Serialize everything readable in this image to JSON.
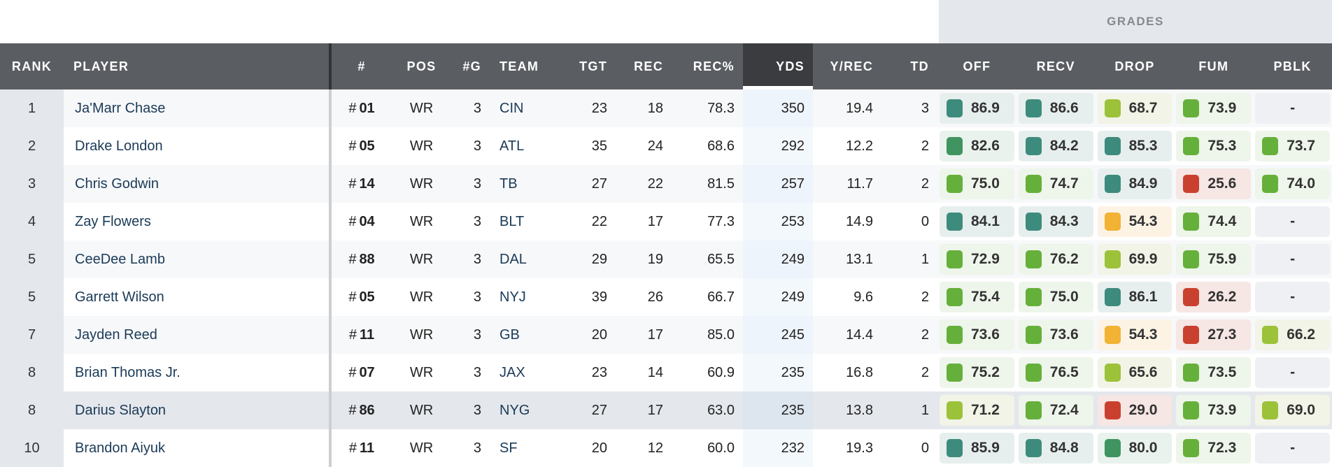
{
  "grades_label": "GRADES",
  "columns": [
    "RANK",
    "PLAYER",
    "#",
    "POS",
    "#G",
    "TEAM",
    "TGT",
    "REC",
    "REC%",
    "YDS",
    "Y/REC",
    "TD",
    "OFF",
    "RECV",
    "DROP",
    "FUM",
    "PBLK"
  ],
  "jersey_prefix": "#",
  "colors": {
    "teal": "#3d8b7d",
    "darkgreen": "#3f9460",
    "green": "#65b03a",
    "yellow": "#9cc23a",
    "orange": "#f2b233",
    "red": "#c9412e",
    "teal_bg": "#e6efed",
    "darkgreen_bg": "#e9f2ec",
    "green_bg": "#eef5ea",
    "yellow_bg": "#f1f4e6",
    "orange_bg": "#fcf3e4",
    "red_bg": "#f6e6e4",
    "none_bg": "#eef0f3"
  },
  "rows": [
    {
      "rank": "1",
      "player": "Ja'Marr Chase",
      "num": "01",
      "pos": "WR",
      "g": "3",
      "team": "CIN",
      "tgt": "23",
      "rec": "18",
      "recp": "78.3",
      "yds": "350",
      "ypr": "19.4",
      "td": "3",
      "grades": [
        "86.9",
        "86.6",
        "68.7",
        "73.9",
        "-"
      ]
    },
    {
      "rank": "2",
      "player": "Drake London",
      "num": "05",
      "pos": "WR",
      "g": "3",
      "team": "ATL",
      "tgt": "35",
      "rec": "24",
      "recp": "68.6",
      "yds": "292",
      "ypr": "12.2",
      "td": "2",
      "grades": [
        "82.6",
        "84.2",
        "85.3",
        "75.3",
        "73.7"
      ]
    },
    {
      "rank": "3",
      "player": "Chris Godwin",
      "num": "14",
      "pos": "WR",
      "g": "3",
      "team": "TB",
      "tgt": "27",
      "rec": "22",
      "recp": "81.5",
      "yds": "257",
      "ypr": "11.7",
      "td": "2",
      "grades": [
        "75.0",
        "74.7",
        "84.9",
        "25.6",
        "74.0"
      ]
    },
    {
      "rank": "4",
      "player": "Zay Flowers",
      "num": "04",
      "pos": "WR",
      "g": "3",
      "team": "BLT",
      "tgt": "22",
      "rec": "17",
      "recp": "77.3",
      "yds": "253",
      "ypr": "14.9",
      "td": "0",
      "grades": [
        "84.1",
        "84.3",
        "54.3",
        "74.4",
        "-"
      ]
    },
    {
      "rank": "5",
      "player": "CeeDee Lamb",
      "num": "88",
      "pos": "WR",
      "g": "3",
      "team": "DAL",
      "tgt": "29",
      "rec": "19",
      "recp": "65.5",
      "yds": "249",
      "ypr": "13.1",
      "td": "1",
      "grades": [
        "72.9",
        "76.2",
        "69.9",
        "75.9",
        "-"
      ]
    },
    {
      "rank": "5",
      "player": "Garrett Wilson",
      "num": "05",
      "pos": "WR",
      "g": "3",
      "team": "NYJ",
      "tgt": "39",
      "rec": "26",
      "recp": "66.7",
      "yds": "249",
      "ypr": "9.6",
      "td": "2",
      "grades": [
        "75.4",
        "75.0",
        "86.1",
        "26.2",
        "-"
      ]
    },
    {
      "rank": "7",
      "player": "Jayden Reed",
      "num": "11",
      "pos": "WR",
      "g": "3",
      "team": "GB",
      "tgt": "20",
      "rec": "17",
      "recp": "85.0",
      "yds": "245",
      "ypr": "14.4",
      "td": "2",
      "grades": [
        "73.6",
        "73.6",
        "54.3",
        "27.3",
        "66.2"
      ]
    },
    {
      "rank": "8",
      "player": "Brian Thomas Jr.",
      "num": "07",
      "pos": "WR",
      "g": "3",
      "team": "JAX",
      "tgt": "23",
      "rec": "14",
      "recp": "60.9",
      "yds": "235",
      "ypr": "16.8",
      "td": "2",
      "grades": [
        "75.2",
        "76.5",
        "65.6",
        "73.5",
        "-"
      ]
    },
    {
      "rank": "8",
      "player": "Darius Slayton",
      "num": "86",
      "pos": "WR",
      "g": "3",
      "team": "NYG",
      "tgt": "27",
      "rec": "17",
      "recp": "63.0",
      "yds": "235",
      "ypr": "13.8",
      "td": "1",
      "grades": [
        "71.2",
        "72.4",
        "29.0",
        "73.9",
        "69.0"
      ],
      "highlighted": true
    },
    {
      "rank": "10",
      "player": "Brandon Aiyuk",
      "num": "11",
      "pos": "WR",
      "g": "3",
      "team": "SF",
      "tgt": "20",
      "rec": "12",
      "recp": "60.0",
      "yds": "232",
      "ypr": "19.3",
      "td": "0",
      "grades": [
        "85.9",
        "84.8",
        "80.0",
        "72.3",
        "-"
      ]
    }
  ]
}
